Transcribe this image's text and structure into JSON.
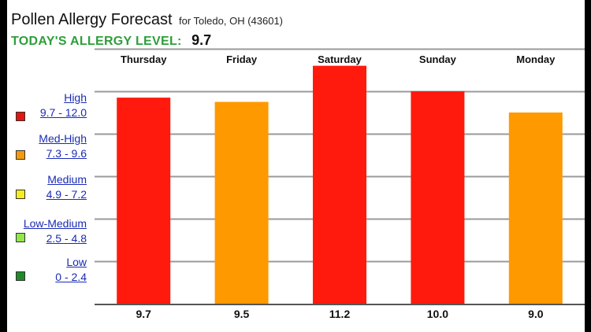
{
  "header": {
    "title": "Pollen Allergy Forecast",
    "location": "for Toledo, OH (43601)",
    "today_label": "TODAY'S ALLERGY LEVEL:",
    "today_value": "9.7"
  },
  "legend": [
    {
      "name": "High",
      "range": "9.7 - 12.0",
      "color": "#e8130c"
    },
    {
      "name": "Med-High",
      "range": "7.3 - 9.6",
      "color": "#f59a0a"
    },
    {
      "name": "Medium",
      "range": "4.9 - 7.2",
      "color": "#f5ee1c"
    },
    {
      "name": "Low-Medium",
      "range": "2.5 - 4.8",
      "color": "#8fe84a"
    },
    {
      "name": "Low",
      "range": "0 - 2.4",
      "color": "#1f8a2a"
    }
  ],
  "chart_data": {
    "type": "bar",
    "categories": [
      "Thursday",
      "Friday",
      "Saturday",
      "Sunday",
      "Monday"
    ],
    "values": [
      9.7,
      9.5,
      11.2,
      10.0,
      9.0
    ],
    "value_labels": [
      "9.7",
      "9.5",
      "11.2",
      "10.0",
      "9.0"
    ],
    "bar_colors": [
      "#ff1a0d",
      "#ff9900",
      "#ff1a0d",
      "#ff1a0d",
      "#ff9900"
    ],
    "ylim": [
      0,
      12
    ],
    "grid": true
  }
}
